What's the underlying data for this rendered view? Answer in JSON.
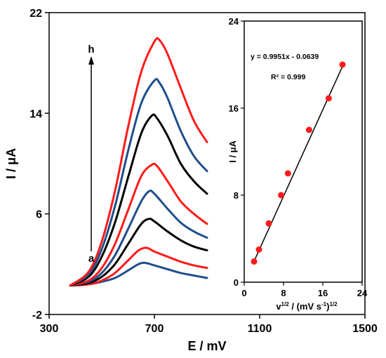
{
  "chart_data": [
    {
      "type": "line",
      "xlabel": "E / mV",
      "ylabel": "I / μA",
      "xlim": [
        300,
        1500
      ],
      "ylim": [
        -2,
        22
      ],
      "xticks": [
        300,
        700,
        1100,
        1500
      ],
      "yticks": [
        -2,
        6,
        14,
        22
      ],
      "grid": false,
      "start_label": "a",
      "end_label": "h",
      "series": [
        {
          "color": "#1f4e8c",
          "x": [
            380,
            450,
            500,
            550,
            600,
            640,
            665,
            700,
            750,
            800,
            850,
            900
          ],
          "y": [
            0.3,
            0.4,
            0.6,
            0.9,
            1.5,
            2.0,
            2.1,
            1.9,
            1.6,
            1.3,
            1.1,
            0.9
          ]
        },
        {
          "color": "#ff1a1a",
          "x": [
            380,
            450,
            500,
            550,
            600,
            640,
            670,
            700,
            750,
            800,
            850,
            900
          ],
          "y": [
            0.3,
            0.4,
            0.7,
            1.3,
            2.3,
            3.1,
            3.3,
            3.0,
            2.6,
            2.2,
            1.9,
            1.7
          ]
        },
        {
          "color": "#000000",
          "x": [
            380,
            450,
            500,
            550,
            600,
            650,
            680,
            700,
            750,
            800,
            850,
            900
          ],
          "y": [
            0.3,
            0.5,
            1.0,
            2.0,
            3.6,
            5.2,
            5.6,
            5.4,
            4.6,
            3.9,
            3.4,
            3.1
          ]
        },
        {
          "color": "#1f4e8c",
          "x": [
            380,
            450,
            500,
            550,
            600,
            650,
            680,
            700,
            750,
            800,
            850,
            900
          ],
          "y": [
            0.3,
            0.6,
            1.3,
            2.7,
            4.8,
            7.0,
            7.8,
            7.6,
            6.4,
            5.3,
            4.6,
            4.1
          ]
        },
        {
          "color": "#ff1a1a",
          "x": [
            380,
            450,
            500,
            550,
            600,
            650,
            690,
            710,
            750,
            800,
            850,
            900
          ],
          "y": [
            0.3,
            0.7,
            1.7,
            3.6,
            6.3,
            9.0,
            9.9,
            9.8,
            8.6,
            7.0,
            6.0,
            5.2
          ]
        },
        {
          "color": "#000000",
          "x": [
            380,
            450,
            500,
            550,
            600,
            650,
            690,
            710,
            750,
            800,
            850,
            900
          ],
          "y": [
            0.3,
            1.0,
            2.6,
            5.3,
            8.9,
            12.4,
            13.8,
            13.6,
            12.2,
            10.0,
            8.6,
            7.6
          ]
        },
        {
          "color": "#1f4e8c",
          "x": [
            380,
            450,
            500,
            550,
            600,
            650,
            700,
            720,
            750,
            800,
            850,
            900
          ],
          "y": [
            0.3,
            1.2,
            3.2,
            6.6,
            11.0,
            14.8,
            16.6,
            16.4,
            15.2,
            12.6,
            10.6,
            9.4
          ]
        },
        {
          "color": "#ff1a1a",
          "x": [
            380,
            450,
            500,
            550,
            600,
            650,
            700,
            720,
            750,
            800,
            850,
            900
          ],
          "y": [
            0.3,
            1.4,
            3.8,
            7.8,
            12.9,
            17.3,
            19.7,
            19.8,
            18.7,
            16.0,
            13.4,
            11.7
          ]
        }
      ]
    },
    {
      "type": "scatter",
      "xlabel": "v1/2 / (mV s-1)1/2",
      "ylabel": "I / μA",
      "xlim": [
        0,
        24
      ],
      "ylim": [
        0,
        24
      ],
      "xticks": [
        0,
        8,
        16,
        24
      ],
      "yticks": [
        0,
        8,
        16,
        24
      ],
      "grid": false,
      "equation": "y = 0.9951x - 0.0639",
      "r_squared": "R² = 0.999",
      "fit": {
        "slope": 0.9951,
        "intercept": -0.0639
      },
      "points": {
        "color": "#ff1a1a",
        "x": [
          2.0,
          3.0,
          5.0,
          7.5,
          8.9,
          13.2,
          17.2,
          20.0
        ],
        "y": [
          1.9,
          3.0,
          5.4,
          8.0,
          10.0,
          14.0,
          16.9,
          20.0
        ]
      }
    }
  ]
}
